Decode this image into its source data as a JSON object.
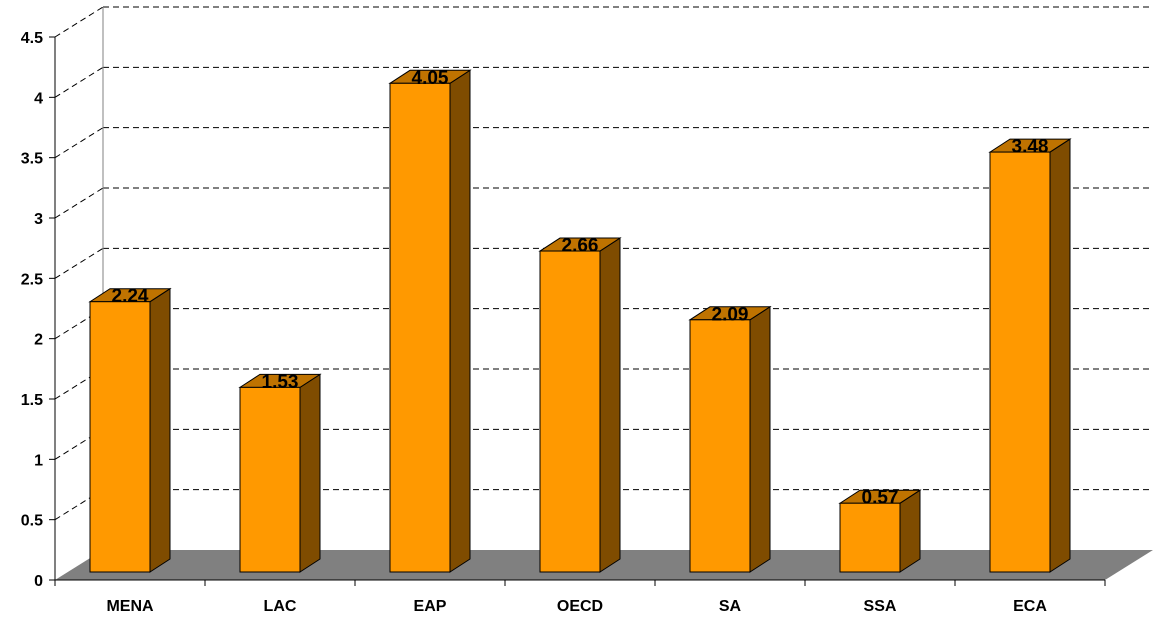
{
  "chart_data": {
    "type": "bar",
    "style": "3d-column",
    "categories": [
      "MENA",
      "LAC",
      "EAP",
      "OECD",
      "SA",
      "SSA",
      "ECA"
    ],
    "values": [
      2.24,
      1.53,
      4.05,
      2.66,
      2.09,
      0.57,
      3.48
    ],
    "data_labels": [
      "2.24",
      "1.53",
      "4.05",
      "2.66",
      "2.09",
      "0.57",
      "3.48"
    ],
    "title": "",
    "xlabel": "",
    "ylabel": "",
    "ylim": [
      0,
      4.5
    ],
    "yticks": [
      "0",
      "0.5",
      "1",
      "1.5",
      "2",
      "2.5",
      "3",
      "3.5",
      "4",
      "4.5"
    ],
    "grid": true,
    "legend": "none",
    "colors": {
      "bar_front": "#ff9900",
      "bar_side": "#7f4c00",
      "bar_top": "#bf7300",
      "floor": "#808080",
      "gridline": "#000000"
    }
  }
}
